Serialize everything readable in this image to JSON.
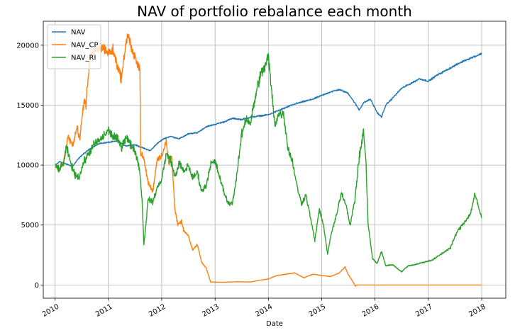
{
  "chart_data": {
    "type": "line",
    "title": "NAV of portfolio rebalance each month",
    "xlabel": "Date",
    "ylabel": "",
    "x_ticks": [
      "2010",
      "2011",
      "2012",
      "2013",
      "2014",
      "2015",
      "2016",
      "2017",
      "2018"
    ],
    "y_ticks": [
      "0",
      "5000",
      "10000",
      "15000",
      "20000"
    ],
    "xlim": [
      "2009-10-12",
      "2018-06-15"
    ],
    "ylim": [
      -1100,
      22000
    ],
    "grid": true,
    "legend": "top-left",
    "series": [
      {
        "name": "NAV",
        "color": "#1f77b4",
        "points": [
          [
            "2010-01-04",
            10000
          ],
          [
            "2010-02-01",
            10300
          ],
          [
            "2010-03-15",
            10100
          ],
          [
            "2010-05-01",
            9900
          ],
          [
            "2010-06-01",
            10400
          ],
          [
            "2010-07-01",
            10800
          ],
          [
            "2010-09-01",
            11400
          ],
          [
            "2010-11-01",
            11800
          ],
          [
            "2011-01-01",
            11900
          ],
          [
            "2011-03-01",
            12000
          ],
          [
            "2011-05-01",
            11600
          ],
          [
            "2011-07-01",
            11700
          ],
          [
            "2011-09-01",
            11400
          ],
          [
            "2011-10-15",
            11200
          ],
          [
            "2011-12-01",
            11800
          ],
          [
            "2012-01-15",
            12200
          ],
          [
            "2012-03-01",
            12400
          ],
          [
            "2012-05-01",
            12200
          ],
          [
            "2012-07-01",
            12600
          ],
          [
            "2012-09-01",
            12700
          ],
          [
            "2012-11-01",
            13200
          ],
          [
            "2013-01-01",
            13400
          ],
          [
            "2013-03-01",
            13600
          ],
          [
            "2013-05-01",
            13900
          ],
          [
            "2013-07-01",
            13800
          ],
          [
            "2013-09-01",
            14000
          ],
          [
            "2013-11-01",
            14100
          ],
          [
            "2014-01-01",
            14200
          ],
          [
            "2014-03-01",
            14500
          ],
          [
            "2014-05-01",
            14800
          ],
          [
            "2014-07-01",
            15100
          ],
          [
            "2014-09-01",
            15300
          ],
          [
            "2014-11-01",
            15500
          ],
          [
            "2015-01-01",
            15800
          ],
          [
            "2015-03-01",
            16100
          ],
          [
            "2015-05-01",
            16300
          ],
          [
            "2015-07-01",
            16000
          ],
          [
            "2015-08-15",
            15200
          ],
          [
            "2015-09-15",
            14600
          ],
          [
            "2015-10-15",
            15200
          ],
          [
            "2015-12-01",
            15500
          ],
          [
            "2016-01-15",
            14400
          ],
          [
            "2016-02-15",
            14000
          ],
          [
            "2016-03-15",
            15000
          ],
          [
            "2016-05-01",
            15600
          ],
          [
            "2016-07-01",
            16400
          ],
          [
            "2016-09-01",
            16800
          ],
          [
            "2016-11-01",
            17200
          ],
          [
            "2017-01-01",
            17000
          ],
          [
            "2017-03-01",
            17500
          ],
          [
            "2017-05-01",
            17900
          ],
          [
            "2017-07-01",
            18300
          ],
          [
            "2017-09-01",
            18700
          ],
          [
            "2017-11-01",
            19000
          ],
          [
            "2018-01-01",
            19300
          ]
        ]
      },
      {
        "name": "NAV_CP",
        "color": "#ff7f0e",
        "points": [
          [
            "2010-01-04",
            10000
          ],
          [
            "2010-02-01",
            9600
          ],
          [
            "2010-03-01",
            10300
          ],
          [
            "2010-04-01",
            12400
          ],
          [
            "2010-05-01",
            11600
          ],
          [
            "2010-06-01",
            13200
          ],
          [
            "2010-06-20",
            12100
          ],
          [
            "2010-07-01",
            13600
          ],
          [
            "2010-07-20",
            15500
          ],
          [
            "2010-08-01",
            15000
          ],
          [
            "2010-08-15",
            17300
          ],
          [
            "2010-09-01",
            19300
          ],
          [
            "2010-10-01",
            19400
          ],
          [
            "2010-11-01",
            19700
          ],
          [
            "2010-12-01",
            19800
          ],
          [
            "2011-01-01",
            19300
          ],
          [
            "2011-02-01",
            19600
          ],
          [
            "2011-03-01",
            18400
          ],
          [
            "2011-04-01",
            17200
          ],
          [
            "2011-05-01",
            20300
          ],
          [
            "2011-05-20",
            20800
          ],
          [
            "2011-06-15",
            19300
          ],
          [
            "2011-07-15",
            18700
          ],
          [
            "2011-08-05",
            18000
          ],
          [
            "2011-08-10",
            11000
          ],
          [
            "2011-09-01",
            10500
          ],
          [
            "2011-10-01",
            8500
          ],
          [
            "2011-11-01",
            7800
          ],
          [
            "2011-12-01",
            10500
          ],
          [
            "2012-01-01",
            10800
          ],
          [
            "2012-02-01",
            11900
          ],
          [
            "2012-02-20",
            10000
          ],
          [
            "2012-03-10",
            10800
          ],
          [
            "2012-04-01",
            6300
          ],
          [
            "2012-04-20",
            5000
          ],
          [
            "2012-05-15",
            5300
          ],
          [
            "2012-06-01",
            4500
          ],
          [
            "2012-07-01",
            4100
          ],
          [
            "2012-08-01",
            2900
          ],
          [
            "2012-09-01",
            3400
          ],
          [
            "2012-10-01",
            1900
          ],
          [
            "2012-11-01",
            1400
          ],
          [
            "2012-11-20",
            700
          ],
          [
            "2012-12-01",
            250
          ],
          [
            "2013-03-01",
            230
          ],
          [
            "2013-06-01",
            270
          ],
          [
            "2013-09-01",
            250
          ],
          [
            "2013-11-01",
            400
          ],
          [
            "2014-01-01",
            500
          ],
          [
            "2014-03-01",
            800
          ],
          [
            "2014-05-01",
            900
          ],
          [
            "2014-07-01",
            1000
          ],
          [
            "2014-09-01",
            600
          ],
          [
            "2014-11-01",
            900
          ],
          [
            "2015-01-01",
            800
          ],
          [
            "2015-03-01",
            700
          ],
          [
            "2015-05-01",
            1000
          ],
          [
            "2015-06-10",
            1500
          ],
          [
            "2015-07-01",
            900
          ],
          [
            "2015-08-01",
            300
          ],
          [
            "2015-08-20",
            -100
          ],
          [
            "2015-09-01",
            0
          ],
          [
            "2016-06-01",
            0
          ],
          [
            "2017-06-01",
            0
          ],
          [
            "2018-01-01",
            0
          ]
        ]
      },
      {
        "name": "NAV_RI",
        "color": "#2ca02c",
        "points": [
          [
            "2010-01-04",
            10000
          ],
          [
            "2010-02-01",
            9600
          ],
          [
            "2010-03-01",
            10200
          ],
          [
            "2010-03-20",
            11500
          ],
          [
            "2010-04-15",
            10300
          ],
          [
            "2010-05-15",
            9200
          ],
          [
            "2010-06-15",
            9000
          ],
          [
            "2010-07-15",
            10200
          ],
          [
            "2010-08-15",
            10900
          ],
          [
            "2010-10-01",
            11800
          ],
          [
            "2010-11-15",
            12200
          ],
          [
            "2011-01-01",
            12900
          ],
          [
            "2011-02-01",
            12400
          ],
          [
            "2011-03-01",
            12200
          ],
          [
            "2011-04-01",
            11500
          ],
          [
            "2011-05-01",
            12400
          ],
          [
            "2011-06-01",
            11700
          ],
          [
            "2011-07-01",
            11300
          ],
          [
            "2011-08-01",
            9800
          ],
          [
            "2011-08-20",
            7100
          ],
          [
            "2011-09-01",
            3300
          ],
          [
            "2011-09-15",
            5100
          ],
          [
            "2011-10-01",
            7200
          ],
          [
            "2011-11-01",
            6900
          ],
          [
            "2011-12-01",
            8100
          ],
          [
            "2012-01-01",
            8800
          ],
          [
            "2012-02-01",
            10900
          ],
          [
            "2012-03-01",
            10500
          ],
          [
            "2012-04-01",
            9000
          ],
          [
            "2012-05-01",
            10200
          ],
          [
            "2012-06-01",
            9400
          ],
          [
            "2012-07-01",
            10000
          ],
          [
            "2012-08-01",
            8900
          ],
          [
            "2012-09-01",
            9400
          ],
          [
            "2012-10-01",
            7800
          ],
          [
            "2012-11-01",
            8300
          ],
          [
            "2012-12-01",
            10100
          ],
          [
            "2013-01-01",
            10300
          ],
          [
            "2013-02-01",
            9000
          ],
          [
            "2013-03-01",
            7800
          ],
          [
            "2013-04-01",
            6800
          ],
          [
            "2013-05-01",
            6900
          ],
          [
            "2013-06-01",
            9300
          ],
          [
            "2013-07-01",
            12500
          ],
          [
            "2013-08-01",
            13900
          ],
          [
            "2013-09-01",
            13500
          ],
          [
            "2013-10-01",
            15500
          ],
          [
            "2013-11-01",
            17300
          ],
          [
            "2013-12-15",
            18400
          ],
          [
            "2014-01-01",
            19100
          ],
          [
            "2014-01-20",
            16500
          ],
          [
            "2014-02-15",
            13400
          ],
          [
            "2014-03-15",
            14300
          ],
          [
            "2014-04-15",
            14300
          ],
          [
            "2014-05-15",
            11400
          ],
          [
            "2014-06-15",
            10300
          ],
          [
            "2014-07-15",
            8300
          ],
          [
            "2014-08-15",
            6800
          ],
          [
            "2014-09-15",
            7500
          ],
          [
            "2014-10-15",
            5700
          ],
          [
            "2014-11-15",
            3700
          ],
          [
            "2014-12-15",
            6300
          ],
          [
            "2015-01-15",
            4900
          ],
          [
            "2015-02-10",
            2600
          ],
          [
            "2015-03-10",
            4400
          ],
          [
            "2015-04-15",
            5900
          ],
          [
            "2015-05-15",
            7700
          ],
          [
            "2015-06-15",
            6800
          ],
          [
            "2015-07-15",
            5000
          ],
          [
            "2015-08-15",
            7000
          ],
          [
            "2015-09-15",
            10600
          ],
          [
            "2015-10-15",
            12900
          ],
          [
            "2015-11-01",
            10000
          ],
          [
            "2015-11-15",
            5100
          ],
          [
            "2015-12-15",
            2200
          ],
          [
            "2016-01-15",
            1800
          ],
          [
            "2016-02-15",
            2800
          ],
          [
            "2016-03-15",
            1600
          ],
          [
            "2016-05-01",
            1700
          ],
          [
            "2016-07-01",
            1100
          ],
          [
            "2016-08-15",
            1600
          ],
          [
            "2016-10-01",
            1700
          ],
          [
            "2016-12-01",
            1900
          ],
          [
            "2017-02-01",
            2100
          ],
          [
            "2017-04-01",
            2600
          ],
          [
            "2017-06-01",
            3100
          ],
          [
            "2017-07-15",
            4400
          ],
          [
            "2017-09-01",
            5200
          ],
          [
            "2017-10-15",
            5900
          ],
          [
            "2017-11-15",
            7600
          ],
          [
            "2017-12-15",
            6300
          ],
          [
            "2018-01-01",
            5600
          ]
        ]
      }
    ]
  }
}
